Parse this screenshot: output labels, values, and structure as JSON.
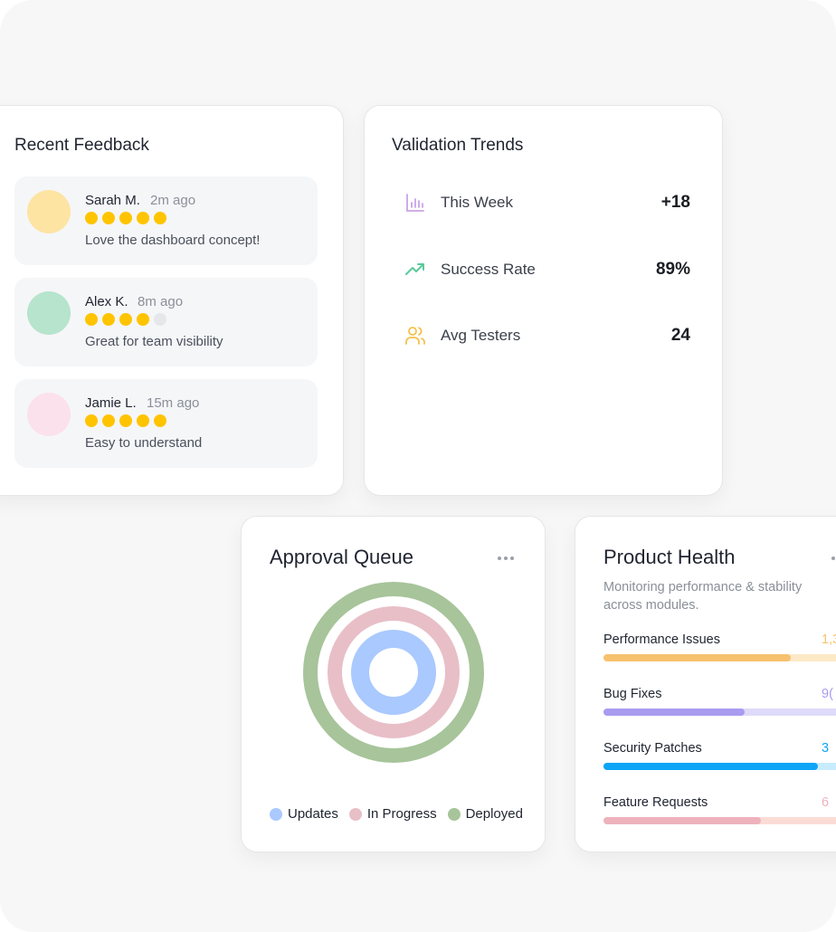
{
  "feedback": {
    "title": "Recent Feedback",
    "items": [
      {
        "name": "Sarah M.",
        "time": "2m ago",
        "rating": 5,
        "text": "Love the dashboard concept!",
        "avatar_color": "#fde4a3"
      },
      {
        "name": "Alex K.",
        "time": "8m ago",
        "rating": 4,
        "text": "Great for team visibility",
        "avatar_color": "#b6e4cc"
      },
      {
        "name": "Jamie L.",
        "time": "15m ago",
        "rating": 5,
        "text": "Easy to understand",
        "avatar_color": "#fbe1ec"
      }
    ],
    "star_color": "#ffc400"
  },
  "trends": {
    "title": "Validation Trends",
    "rows": [
      {
        "icon": "bar-chart-icon",
        "label": "This Week",
        "value": "+18",
        "color": "#c9a3e8"
      },
      {
        "icon": "trending-up-icon",
        "label": "Success Rate",
        "value": "89%",
        "color": "#5cc99a"
      },
      {
        "icon": "users-icon",
        "label": "Avg Testers",
        "value": "24",
        "color": "#f5c04a"
      }
    ]
  },
  "queue": {
    "title": "Approval Queue",
    "legend": [
      {
        "label": "Updates",
        "color": "#a9c9ff"
      },
      {
        "label": "In Progress",
        "color": "#e8bfc7"
      },
      {
        "label": "Deployed",
        "color": "#a7c49a"
      }
    ]
  },
  "health": {
    "title": "Product Health",
    "subtitle": "Monitoring performance & stability across modules.",
    "metrics": [
      {
        "label": "Performance Issues",
        "value": "1,3",
        "fill": 0.69,
        "color": "#f6c26e",
        "track": "#fde9c7",
        "value_color": "#f6c26e"
      },
      {
        "label": "Bug Fixes",
        "value": "9(",
        "fill": 0.52,
        "color": "#a99cf0",
        "track": "#dedaf9",
        "value_color": "#a99cf0"
      },
      {
        "label": "Security Patches",
        "value": "3",
        "fill": 0.79,
        "color": "#0ea5f7",
        "track": "#c8ecfd",
        "value_color": "#0ea5f7"
      },
      {
        "label": "Feature Requests",
        "value": "6",
        "fill": 0.58,
        "color": "#eeb2bd",
        "track": "#fbdcd5",
        "value_color": "#eeb2bd"
      }
    ]
  }
}
